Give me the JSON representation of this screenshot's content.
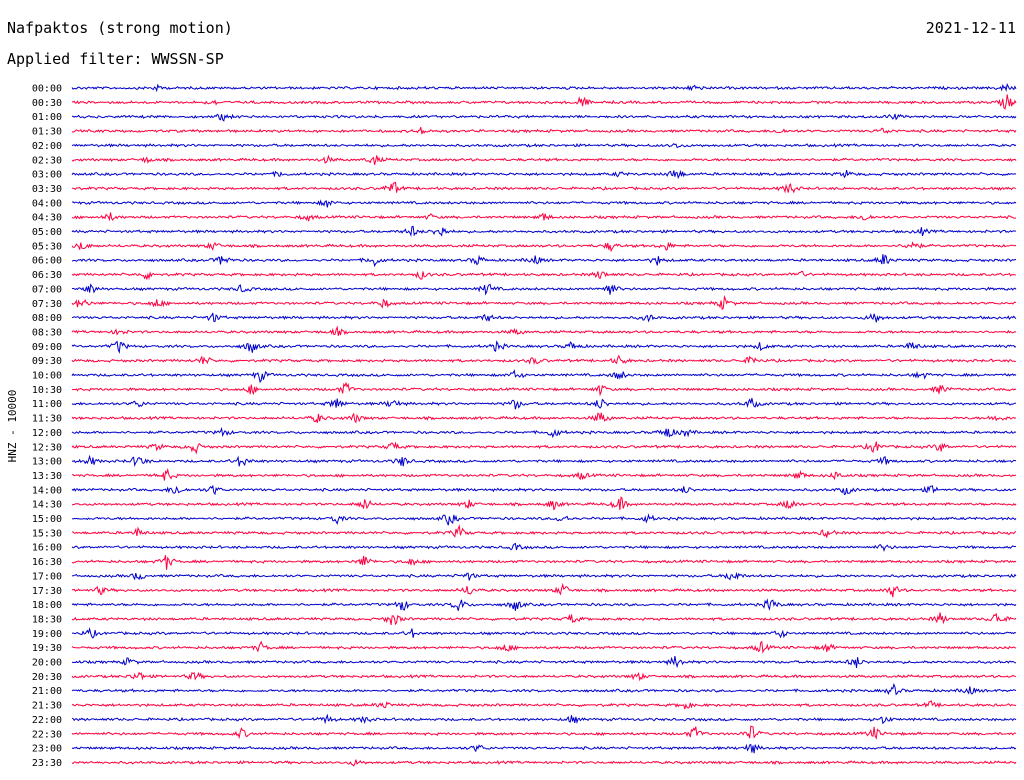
{
  "header": {
    "title": "Nafpaktos (strong motion)",
    "date": "2021-12-11",
    "filter": "Applied filter: WWSSN-SP"
  },
  "chart_data": {
    "type": "line",
    "ylabel": "HNZ - 10000",
    "colors": {
      "even": "#0000cc",
      "odd": "#ff0040"
    },
    "grid": false,
    "rows": [
      {
        "label": "00:00",
        "events": [
          [
            0.09,
            0.3
          ],
          [
            0.66,
            0.4
          ],
          [
            0.99,
            0.5
          ]
        ]
      },
      {
        "label": "00:30",
        "events": [
          [
            0.15,
            0.3
          ],
          [
            0.54,
            0.8
          ],
          [
            0.99,
            1.0
          ]
        ]
      },
      {
        "label": "01:00",
        "events": [
          [
            0.16,
            0.5
          ],
          [
            0.87,
            0.4
          ]
        ]
      },
      {
        "label": "01:30",
        "events": [
          [
            0.37,
            0.4
          ],
          [
            0.75,
            0.3
          ],
          [
            0.86,
            0.4
          ]
        ]
      },
      {
        "label": "02:00",
        "events": [
          [
            0.64,
            0.3
          ]
        ]
      },
      {
        "label": "02:30",
        "events": [
          [
            0.08,
            0.3
          ],
          [
            0.27,
            0.4
          ],
          [
            0.32,
            0.7
          ]
        ]
      },
      {
        "label": "03:00",
        "events": [
          [
            0.22,
            0.3
          ],
          [
            0.58,
            0.3
          ],
          [
            0.64,
            0.9
          ],
          [
            0.82,
            0.4
          ]
        ]
      },
      {
        "label": "03:30",
        "events": [
          [
            0.34,
            1.0
          ],
          [
            0.76,
            0.8
          ]
        ]
      },
      {
        "label": "04:00",
        "events": [
          [
            0.27,
            0.5
          ]
        ]
      },
      {
        "label": "04:30",
        "events": [
          [
            0.04,
            0.5
          ],
          [
            0.25,
            0.4
          ],
          [
            0.38,
            0.3
          ],
          [
            0.5,
            0.5
          ],
          [
            0.84,
            0.5
          ]
        ]
      },
      {
        "label": "05:00",
        "events": [
          [
            0.36,
            0.7
          ],
          [
            0.39,
            0.9
          ],
          [
            0.9,
            0.4
          ]
        ]
      },
      {
        "label": "05:30",
        "events": [
          [
            0.01,
            0.6
          ],
          [
            0.15,
            0.5
          ],
          [
            0.57,
            0.6
          ],
          [
            0.63,
            0.5
          ],
          [
            0.89,
            0.8
          ]
        ]
      },
      {
        "label": "06:00",
        "events": [
          [
            0.16,
            0.8
          ],
          [
            0.32,
            0.7
          ],
          [
            0.43,
            0.6
          ],
          [
            0.49,
            0.6
          ],
          [
            0.62,
            0.5
          ],
          [
            0.86,
            0.8
          ]
        ]
      },
      {
        "label": "06:30",
        "events": [
          [
            0.08,
            0.6
          ],
          [
            0.37,
            0.5
          ],
          [
            0.56,
            0.6
          ],
          [
            0.77,
            0.5
          ]
        ]
      },
      {
        "label": "07:00",
        "events": [
          [
            0.02,
            0.6
          ],
          [
            0.18,
            0.5
          ],
          [
            0.44,
            0.8
          ],
          [
            0.57,
            0.9
          ]
        ]
      },
      {
        "label": "07:30",
        "events": [
          [
            0.01,
            0.8
          ],
          [
            0.09,
            0.6
          ],
          [
            0.33,
            0.6
          ],
          [
            0.69,
            0.8
          ]
        ]
      },
      {
        "label": "08:00",
        "events": [
          [
            0.15,
            0.6
          ],
          [
            0.44,
            0.5
          ],
          [
            0.61,
            0.5
          ],
          [
            0.85,
            0.8
          ]
        ]
      },
      {
        "label": "08:30",
        "events": [
          [
            0.05,
            0.4
          ],
          [
            0.28,
            0.5
          ],
          [
            0.47,
            0.4
          ]
        ]
      },
      {
        "label": "09:00",
        "events": [
          [
            0.05,
            0.8
          ],
          [
            0.19,
            0.9
          ],
          [
            0.45,
            0.6
          ],
          [
            0.53,
            0.6
          ],
          [
            0.73,
            0.5
          ],
          [
            0.89,
            0.6
          ]
        ]
      },
      {
        "label": "09:30",
        "events": [
          [
            0.14,
            0.6
          ],
          [
            0.49,
            0.5
          ],
          [
            0.58,
            0.6
          ],
          [
            0.72,
            0.6
          ]
        ]
      },
      {
        "label": "10:00",
        "events": [
          [
            0.2,
            0.8
          ],
          [
            0.47,
            0.6
          ],
          [
            0.58,
            0.7
          ],
          [
            0.9,
            0.5
          ]
        ]
      },
      {
        "label": "10:30",
        "events": [
          [
            0.19,
            0.6
          ],
          [
            0.29,
            0.8
          ],
          [
            0.56,
            0.6
          ],
          [
            0.92,
            0.6
          ]
        ]
      },
      {
        "label": "11:00",
        "events": [
          [
            0.07,
            0.5
          ],
          [
            0.28,
            0.8
          ],
          [
            0.34,
            0.7
          ],
          [
            0.47,
            0.7
          ],
          [
            0.56,
            0.8
          ],
          [
            0.72,
            0.7
          ]
        ]
      },
      {
        "label": "11:30",
        "events": [
          [
            0.26,
            0.6
          ],
          [
            0.3,
            0.6
          ],
          [
            0.56,
            0.9
          ],
          [
            0.98,
            0.5
          ]
        ]
      },
      {
        "label": "12:00",
        "events": [
          [
            0.16,
            0.5
          ],
          [
            0.51,
            0.7
          ],
          [
            0.63,
            0.9
          ],
          [
            0.65,
            0.5
          ]
        ]
      },
      {
        "label": "12:30",
        "events": [
          [
            0.09,
            0.4
          ],
          [
            0.13,
            0.8
          ],
          [
            0.34,
            0.6
          ],
          [
            0.85,
            0.8
          ],
          [
            0.92,
            0.6
          ]
        ]
      },
      {
        "label": "13:00",
        "events": [
          [
            0.02,
            0.6
          ],
          [
            0.07,
            0.9
          ],
          [
            0.18,
            0.9
          ],
          [
            0.35,
            0.7
          ],
          [
            0.86,
            0.5
          ]
        ]
      },
      {
        "label": "13:30",
        "events": [
          [
            0.1,
            0.8
          ],
          [
            0.54,
            0.5
          ],
          [
            0.77,
            0.6
          ],
          [
            0.81,
            0.5
          ]
        ]
      },
      {
        "label": "14:00",
        "events": [
          [
            0.11,
            0.8
          ],
          [
            0.15,
            0.6
          ],
          [
            0.65,
            0.5
          ],
          [
            0.82,
            0.6
          ],
          [
            0.91,
            0.5
          ]
        ]
      },
      {
        "label": "14:30",
        "events": [
          [
            0.31,
            0.8
          ],
          [
            0.42,
            0.5
          ],
          [
            0.51,
            0.6
          ],
          [
            0.58,
            1.0
          ],
          [
            0.76,
            0.8
          ]
        ]
      },
      {
        "label": "15:00",
        "events": [
          [
            0.28,
            0.6
          ],
          [
            0.4,
            0.9
          ],
          [
            0.52,
            0.6
          ],
          [
            0.61,
            0.5
          ]
        ]
      },
      {
        "label": "15:30",
        "events": [
          [
            0.07,
            0.5
          ],
          [
            0.41,
            0.8
          ],
          [
            0.8,
            0.6
          ]
        ]
      },
      {
        "label": "16:00",
        "events": [
          [
            0.47,
            0.4
          ],
          [
            0.86,
            0.4
          ]
        ]
      },
      {
        "label": "16:30",
        "events": [
          [
            0.1,
            0.9
          ],
          [
            0.31,
            0.8
          ],
          [
            0.36,
            0.5
          ]
        ]
      },
      {
        "label": "17:00",
        "events": [
          [
            0.07,
            0.6
          ],
          [
            0.42,
            0.5
          ],
          [
            0.7,
            0.9
          ]
        ]
      },
      {
        "label": "17:30",
        "events": [
          [
            0.03,
            0.5
          ],
          [
            0.42,
            0.7
          ],
          [
            0.52,
            0.8
          ],
          [
            0.87,
            0.8
          ]
        ]
      },
      {
        "label": "18:00",
        "events": [
          [
            0.35,
            0.8
          ],
          [
            0.41,
            0.9
          ],
          [
            0.47,
            0.8
          ],
          [
            0.74,
            0.9
          ]
        ]
      },
      {
        "label": "18:30",
        "events": [
          [
            0.34,
            1.0
          ],
          [
            0.53,
            0.6
          ],
          [
            0.92,
            0.7
          ],
          [
            0.98,
            1.0
          ]
        ]
      },
      {
        "label": "19:00",
        "events": [
          [
            0.02,
            0.6
          ],
          [
            0.36,
            0.5
          ],
          [
            0.75,
            0.6
          ]
        ]
      },
      {
        "label": "19:30",
        "events": [
          [
            0.2,
            0.6
          ],
          [
            0.46,
            0.6
          ],
          [
            0.73,
            0.7
          ],
          [
            0.8,
            0.5
          ]
        ]
      },
      {
        "label": "20:00",
        "events": [
          [
            0.06,
            0.5
          ],
          [
            0.64,
            0.8
          ],
          [
            0.83,
            0.8
          ]
        ]
      },
      {
        "label": "20:30",
        "events": [
          [
            0.07,
            0.7
          ],
          [
            0.13,
            0.6
          ],
          [
            0.6,
            0.5
          ]
        ]
      },
      {
        "label": "21:00",
        "events": [
          [
            0.87,
            0.7
          ],
          [
            0.95,
            0.6
          ]
        ]
      },
      {
        "label": "21:30",
        "events": [
          [
            0.33,
            0.5
          ],
          [
            0.65,
            0.5
          ],
          [
            0.91,
            0.4
          ]
        ]
      },
      {
        "label": "22:00",
        "events": [
          [
            0.27,
            0.5
          ],
          [
            0.31,
            0.4
          ],
          [
            0.53,
            0.5
          ],
          [
            0.86,
            0.5
          ]
        ]
      },
      {
        "label": "22:30",
        "events": [
          [
            0.18,
            0.6
          ],
          [
            0.66,
            0.9
          ],
          [
            0.72,
            1.0
          ],
          [
            0.85,
            0.8
          ]
        ]
      },
      {
        "label": "23:00",
        "events": [
          [
            0.43,
            0.5
          ],
          [
            0.72,
            0.8
          ]
        ]
      },
      {
        "label": "23:30",
        "events": [
          [
            0.3,
            0.4
          ]
        ]
      }
    ]
  }
}
